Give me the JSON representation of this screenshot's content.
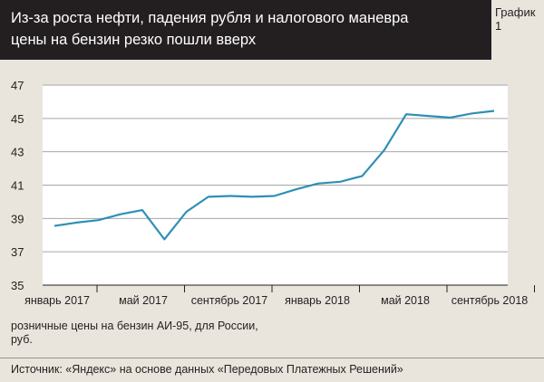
{
  "header": {
    "title_line1": "Из-за роста нефти, падения рубля и налогового маневра",
    "title_line2": "цены на бензин резко пошли вверх",
    "badge": "График 1"
  },
  "note": {
    "line1": "розничные цены на бензин АИ-95, для России,",
    "line2": "руб."
  },
  "source": "Источник: «Яндекс» на основе данных «Передовых Платежных Решений»",
  "colors": {
    "header_bg": "#231f20",
    "background": "#e9e5dd",
    "plot_bg": "#ffffff",
    "line": "#2e8fb5",
    "grid": "#a6a6a6"
  },
  "chart_data": {
    "type": "line",
    "title": "",
    "xlabel": "",
    "ylabel": "",
    "ylim": [
      35,
      47
    ],
    "yticks": [
      "35",
      "37",
      "39",
      "41",
      "43",
      "45",
      "47"
    ],
    "xtick_labels": [
      "январь 2017",
      "май 2017",
      "сентябрь 2017",
      "январь 2018",
      "май 2018",
      "сентябрь 2018"
    ],
    "grid": true,
    "series": [
      {
        "values": [
          38.55,
          38.75,
          38.9,
          39.25,
          39.5,
          37.75,
          39.4,
          40.3,
          40.35,
          40.3,
          40.35,
          40.75,
          41.1,
          41.2,
          41.55,
          43.1,
          45.25,
          45.15,
          45.05,
          45.3,
          45.45
        ]
      }
    ]
  }
}
